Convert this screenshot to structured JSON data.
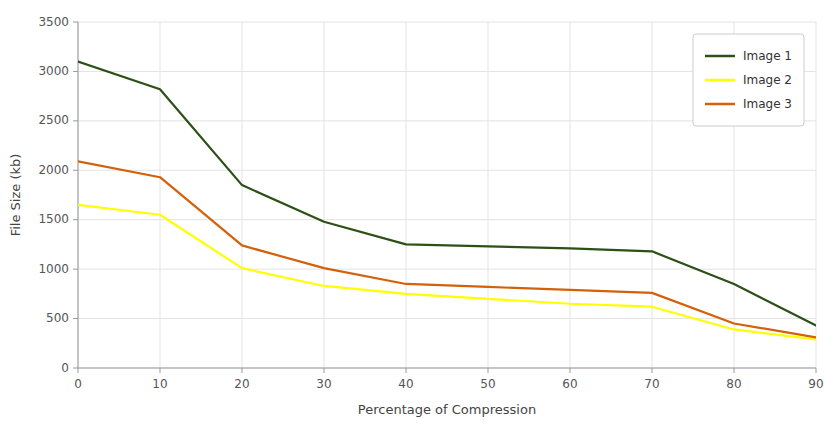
{
  "chart_data": {
    "type": "line",
    "xlabel": "Percentage of Compression",
    "ylabel": "File Size (kb)",
    "x": [
      0,
      10,
      20,
      30,
      40,
      50,
      60,
      70,
      80,
      90
    ],
    "series": [
      {
        "name": "Image 1",
        "color": "#2d5016",
        "values": [
          3100,
          2820,
          1850,
          1480,
          1250,
          1230,
          1210,
          1180,
          850,
          430
        ]
      },
      {
        "name": "Image 2",
        "color": "#ffff00",
        "values": [
          1650,
          1550,
          1010,
          830,
          750,
          700,
          650,
          620,
          390,
          290
        ]
      },
      {
        "name": "Image 3",
        "color": "#d4600a",
        "values": [
          2090,
          1930,
          1240,
          1010,
          850,
          820,
          790,
          760,
          450,
          310
        ]
      }
    ],
    "xlim": [
      0,
      90
    ],
    "ylim": [
      0,
      3500
    ],
    "xticks": [
      0,
      10,
      20,
      30,
      40,
      50,
      60,
      70,
      80,
      90
    ],
    "yticks": [
      0,
      500,
      1000,
      1500,
      2000,
      2500,
      3000,
      3500
    ],
    "grid": true,
    "legend": "upper right"
  }
}
